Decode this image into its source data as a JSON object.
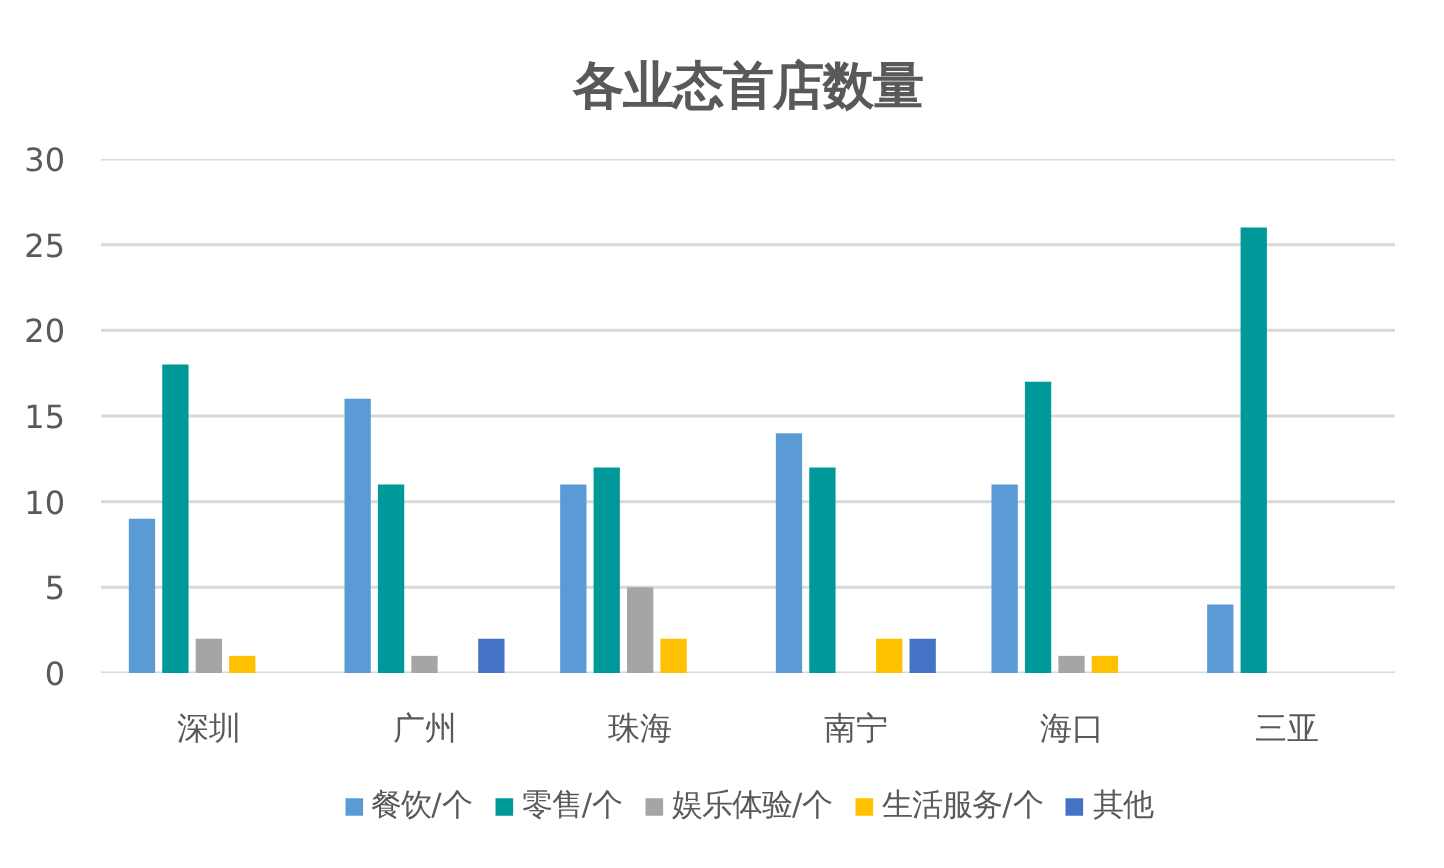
{
  "chart_data": {
    "type": "bar",
    "title": "各业态首店数量",
    "categories": [
      "深圳",
      "广州",
      "珠海",
      "南宁",
      "海口",
      "三亚"
    ],
    "series": [
      {
        "name": "餐饮/个",
        "color": "#5b9bd5",
        "values": [
          9,
          16,
          11,
          14,
          11,
          4
        ]
      },
      {
        "name": "零售/个",
        "color": "#009999",
        "values": [
          18,
          11,
          12,
          12,
          17,
          26
        ]
      },
      {
        "name": "娱乐体验/个",
        "color": "#a5a5a5",
        "values": [
          2,
          1,
          5,
          0,
          1,
          0
        ]
      },
      {
        "name": "生活服务/个",
        "color": "#ffc000",
        "values": [
          1,
          0,
          2,
          2,
          1,
          0
        ]
      },
      {
        "name": "其他",
        "color": "#4472c4",
        "values": [
          0,
          2,
          0,
          2,
          0,
          0
        ]
      }
    ],
    "ylim": [
      0,
      30
    ],
    "yticks": [
      0,
      5,
      10,
      15,
      20,
      25,
      30
    ],
    "grid": "y",
    "legend": "bottom"
  }
}
